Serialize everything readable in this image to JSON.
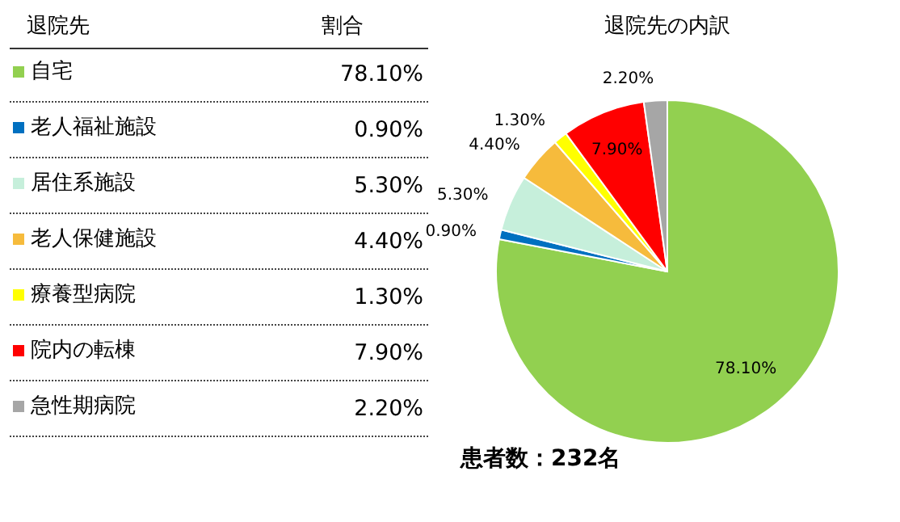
{
  "chart_data": {
    "type": "pie",
    "title": "退院先の内訳",
    "legend": "left",
    "legend_title": "退院先",
    "categories": [
      "自宅",
      "老人福祉施設",
      "居住系施設",
      "老人保健施設",
      "療養型病院",
      "院内の転棟",
      "急性期病院"
    ],
    "values": [
      78.1,
      0.9,
      5.3,
      4.4,
      1.3,
      7.9,
      2.2
    ],
    "value_labels": [
      "78.10%",
      "0.90%",
      "5.30%",
      "4.40%",
      "1.30%",
      "7.90%",
      "2.20%"
    ],
    "colors": [
      "#92d050",
      "#0070c0",
      "#c6efdb",
      "#f6bb3c",
      "#ffff00",
      "#ff0000",
      "#a6a6a6"
    ],
    "annotations": [
      "割合",
      "患者数：232名"
    ]
  }
}
